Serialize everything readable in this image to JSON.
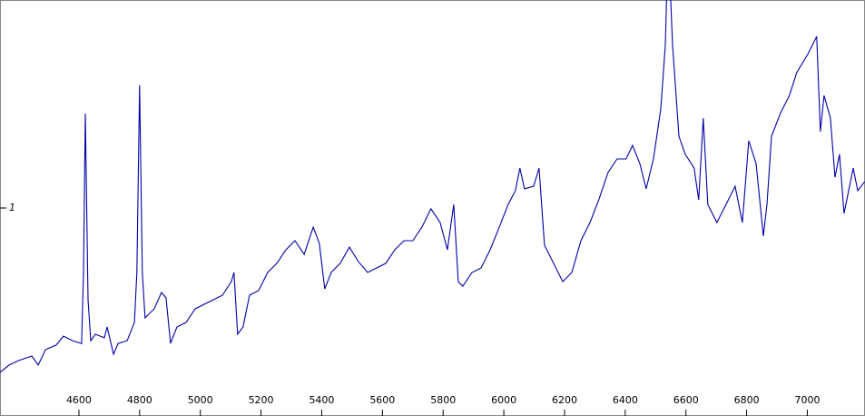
{
  "chart_data": {
    "type": "line",
    "color": "#0000a8",
    "x": [
      4340,
      4370,
      4400,
      4445,
      4466,
      4490,
      4525,
      4549,
      4579,
      4609,
      4615,
      4621,
      4630,
      4639,
      4654,
      4684,
      4693,
      4714,
      4729,
      4759,
      4783,
      4791,
      4800,
      4809,
      4818,
      4848,
      4872,
      4887,
      4902,
      4923,
      4953,
      4983,
      5013,
      5043,
      5073,
      5102,
      5111,
      5123,
      5141,
      5162,
      5192,
      5222,
      5252,
      5282,
      5312,
      5342,
      5372,
      5392,
      5410,
      5431,
      5461,
      5491,
      5521,
      5551,
      5581,
      5611,
      5641,
      5671,
      5700,
      5730,
      5760,
      5790,
      5814,
      5835,
      5850,
      5865,
      5895,
      5925,
      5955,
      5985,
      6014,
      6038,
      6053,
      6068,
      6098,
      6116,
      6134,
      6164,
      6194,
      6224,
      6254,
      6284,
      6313,
      6343,
      6373,
      6403,
      6424,
      6448,
      6469,
      6493,
      6517,
      6532,
      6538,
      6547,
      6556,
      6577,
      6598,
      6627,
      6642,
      6657,
      6672,
      6702,
      6732,
      6762,
      6786,
      6807,
      6831,
      6855,
      6867,
      6882,
      6911,
      6941,
      6965,
      7001,
      7031,
      7043,
      7055,
      7076,
      7091,
      7106,
      7121,
      7151,
      7166,
      7189
    ],
    "values": [
      0.21,
      0.245,
      0.266,
      0.288,
      0.245,
      0.319,
      0.341,
      0.384,
      0.362,
      0.349,
      0.69,
      1.454,
      0.559,
      0.362,
      0.393,
      0.376,
      0.428,
      0.297,
      0.349,
      0.362,
      0.45,
      0.69,
      1.59,
      0.69,
      0.472,
      0.515,
      0.594,
      0.568,
      0.349,
      0.428,
      0.45,
      0.515,
      0.537,
      0.559,
      0.581,
      0.646,
      0.69,
      0.393,
      0.428,
      0.581,
      0.603,
      0.69,
      0.734,
      0.799,
      0.843,
      0.777,
      0.908,
      0.83,
      0.611,
      0.69,
      0.734,
      0.812,
      0.742,
      0.69,
      0.712,
      0.734,
      0.799,
      0.843,
      0.843,
      0.908,
      0.996,
      0.93,
      0.799,
      1.017,
      0.646,
      0.624,
      0.69,
      0.712,
      0.799,
      0.908,
      1.017,
      1.083,
      1.192,
      1.092,
      1.105,
      1.192,
      0.821,
      0.734,
      0.646,
      0.69,
      0.843,
      0.93,
      1.039,
      1.17,
      1.236,
      1.236,
      1.301,
      1.214,
      1.092,
      1.236,
      1.476,
      1.782,
      2.1,
      2.1,
      1.782,
      1.345,
      1.258,
      1.192,
      1.039,
      1.432,
      1.017,
      0.93,
      1.017,
      1.105,
      0.93,
      1.323,
      1.214,
      0.865,
      1.017,
      1.345,
      1.454,
      1.541,
      1.651,
      1.738,
      1.825,
      1.367,
      1.541,
      1.432,
      1.148,
      1.258,
      0.974,
      1.192,
      1.083,
      1.127
    ],
    "xlim": [
      4340,
      7190
    ],
    "xticks": [
      4600,
      4800,
      5000,
      5200,
      5400,
      5600,
      5800,
      6000,
      6200,
      6400,
      6600,
      6800,
      7000
    ],
    "ylim": [
      0,
      2
    ],
    "yticks": [
      1
    ]
  }
}
